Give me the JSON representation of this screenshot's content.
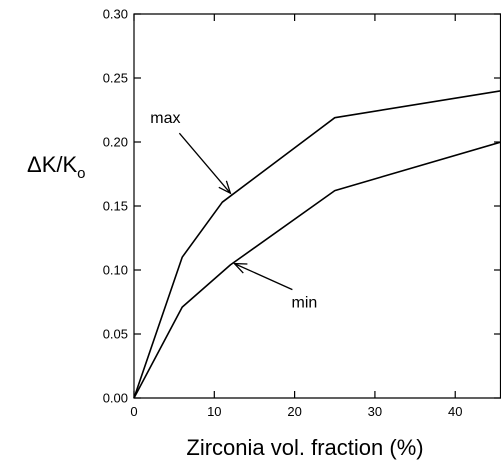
{
  "chart_data": {
    "type": "line",
    "title": "",
    "xlabel": "Zirconia vol. fraction (%)",
    "ylabel": "ΔK/K",
    "ylabel_subscript": "o",
    "xlim": [
      0,
      45.7
    ],
    "ylim": [
      0,
      0.3
    ],
    "x_ticks": [
      0,
      10,
      20,
      30,
      40
    ],
    "x_tick_labels": [
      "0",
      "10",
      "20",
      "30",
      "40"
    ],
    "y_ticks": [
      0.0,
      0.05,
      0.1,
      0.15,
      0.2,
      0.25,
      0.3
    ],
    "y_tick_labels": [
      "0.00",
      "0.05",
      "0.10",
      "0.15",
      "0.20",
      "0.25",
      "0.30"
    ],
    "grid": false,
    "series": [
      {
        "name": "max",
        "x": [
          0,
          6,
          11,
          25,
          45.7
        ],
        "y": [
          0.0,
          0.11,
          0.153,
          0.219,
          0.24
        ]
      },
      {
        "name": "min",
        "x": [
          0,
          6,
          12,
          25,
          45.7
        ],
        "y": [
          0.0,
          0.071,
          0.104,
          0.162,
          0.2
        ]
      }
    ],
    "annotations": [
      {
        "text": "max",
        "series": 0,
        "x": 12,
        "y": 0.16
      },
      {
        "text": "min",
        "series": 1,
        "x": 12.5,
        "y": 0.105
      }
    ]
  }
}
